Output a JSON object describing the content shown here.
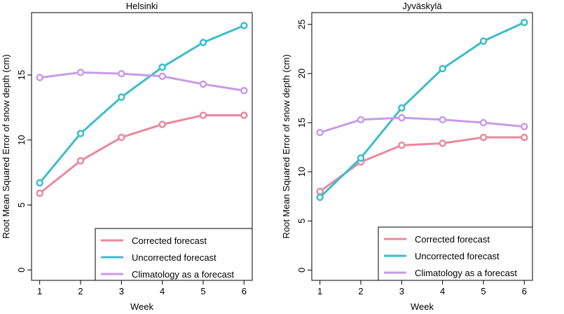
{
  "chart_data": [
    {
      "type": "line",
      "title": "Helsinki",
      "xlabel": "Week",
      "ylabel": "Root Mean Squared Error of snow depth (cm)",
      "x": [
        1,
        2,
        3,
        4,
        5,
        6
      ],
      "xticks": [
        1,
        2,
        3,
        4,
        5,
        6
      ],
      "yticks": [
        0,
        5,
        10,
        15
      ],
      "xlim": [
        0.8,
        6.2
      ],
      "ylim": [
        -0.8,
        19.8
      ],
      "grid": false,
      "legend_position": "bottom-right",
      "series": [
        {
          "name": "Corrected forecast",
          "color": "#e8899e",
          "values": [
            5.9,
            8.4,
            10.2,
            11.2,
            11.9,
            11.9
          ]
        },
        {
          "name": "Uncorrected forecast",
          "color": "#3bbdca",
          "values": [
            6.7,
            10.5,
            13.3,
            15.6,
            17.5,
            18.8
          ]
        },
        {
          "name": "Climatology as a forecast",
          "color": "#c79be8",
          "values": [
            14.8,
            15.2,
            15.1,
            14.9,
            14.3,
            13.8
          ]
        }
      ]
    },
    {
      "type": "line",
      "title": "Jyväskylä",
      "xlabel": "Week",
      "ylabel": "Root Mean Squared Error of snow depth (cm)",
      "x": [
        1,
        2,
        3,
        4,
        5,
        6
      ],
      "xticks": [
        1,
        2,
        3,
        4,
        5,
        6
      ],
      "yticks": [
        0,
        5,
        10,
        15,
        20,
        25
      ],
      "xlim": [
        0.8,
        6.2
      ],
      "ylim": [
        -1.05,
        26.2
      ],
      "grid": false,
      "legend_position": "bottom-right",
      "series": [
        {
          "name": "Corrected forecast",
          "color": "#e8899e",
          "values": [
            8.0,
            11.0,
            12.7,
            12.9,
            13.5,
            13.5
          ]
        },
        {
          "name": "Uncorrected forecast",
          "color": "#3bbdca",
          "values": [
            7.4,
            11.4,
            16.5,
            20.5,
            23.3,
            25.2
          ]
        },
        {
          "name": "Climatology as a forecast",
          "color": "#c79be8",
          "values": [
            14.0,
            15.3,
            15.5,
            15.3,
            15.0,
            14.6
          ]
        }
      ]
    }
  ]
}
